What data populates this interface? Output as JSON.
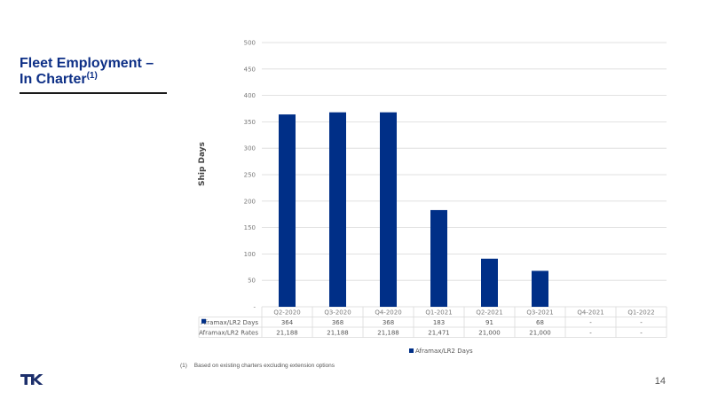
{
  "slide": {
    "title": "Fleet Employment – In Charter",
    "title_sup": "(1)",
    "footnote_number": "(1)",
    "footnote_text": "Based on existing charters excluding extension options",
    "page_number": "14",
    "logo": "tk-logo"
  },
  "chart_data": {
    "type": "bar",
    "ylabel": "Ship Days",
    "ylim": [
      0,
      500
    ],
    "yticks": [
      "-",
      "50",
      "100",
      "150",
      "200",
      "250",
      "300",
      "350",
      "400",
      "450",
      "500"
    ],
    "categories": [
      "Q2-2020",
      "Q3-2020",
      "Q4-2020",
      "Q1-2021",
      "Q2-2021",
      "Q3-2021",
      "Q4-2021",
      "Q1-2022"
    ],
    "series": [
      {
        "name": "Aframax/LR2 Days",
        "color": "#002f87",
        "values": [
          364,
          368,
          368,
          183,
          91,
          68,
          null,
          null
        ],
        "labels": [
          "364",
          "368",
          "368",
          "183",
          "91",
          "68",
          "-",
          "-"
        ]
      }
    ],
    "table_rows": [
      {
        "name": "Aframax/LR2 Days",
        "values": [
          "364",
          "368",
          "368",
          "183",
          "91",
          "68",
          "-",
          "-"
        ]
      },
      {
        "name": "Aframax/LR2 Rates",
        "values": [
          "21,188",
          "21,188",
          "21,188",
          "21,471",
          "21,000",
          "21,000",
          "-",
          "-"
        ]
      }
    ],
    "legend": {
      "label": "Aframax/LR2 Days",
      "position": "bottom"
    },
    "grid": true
  }
}
